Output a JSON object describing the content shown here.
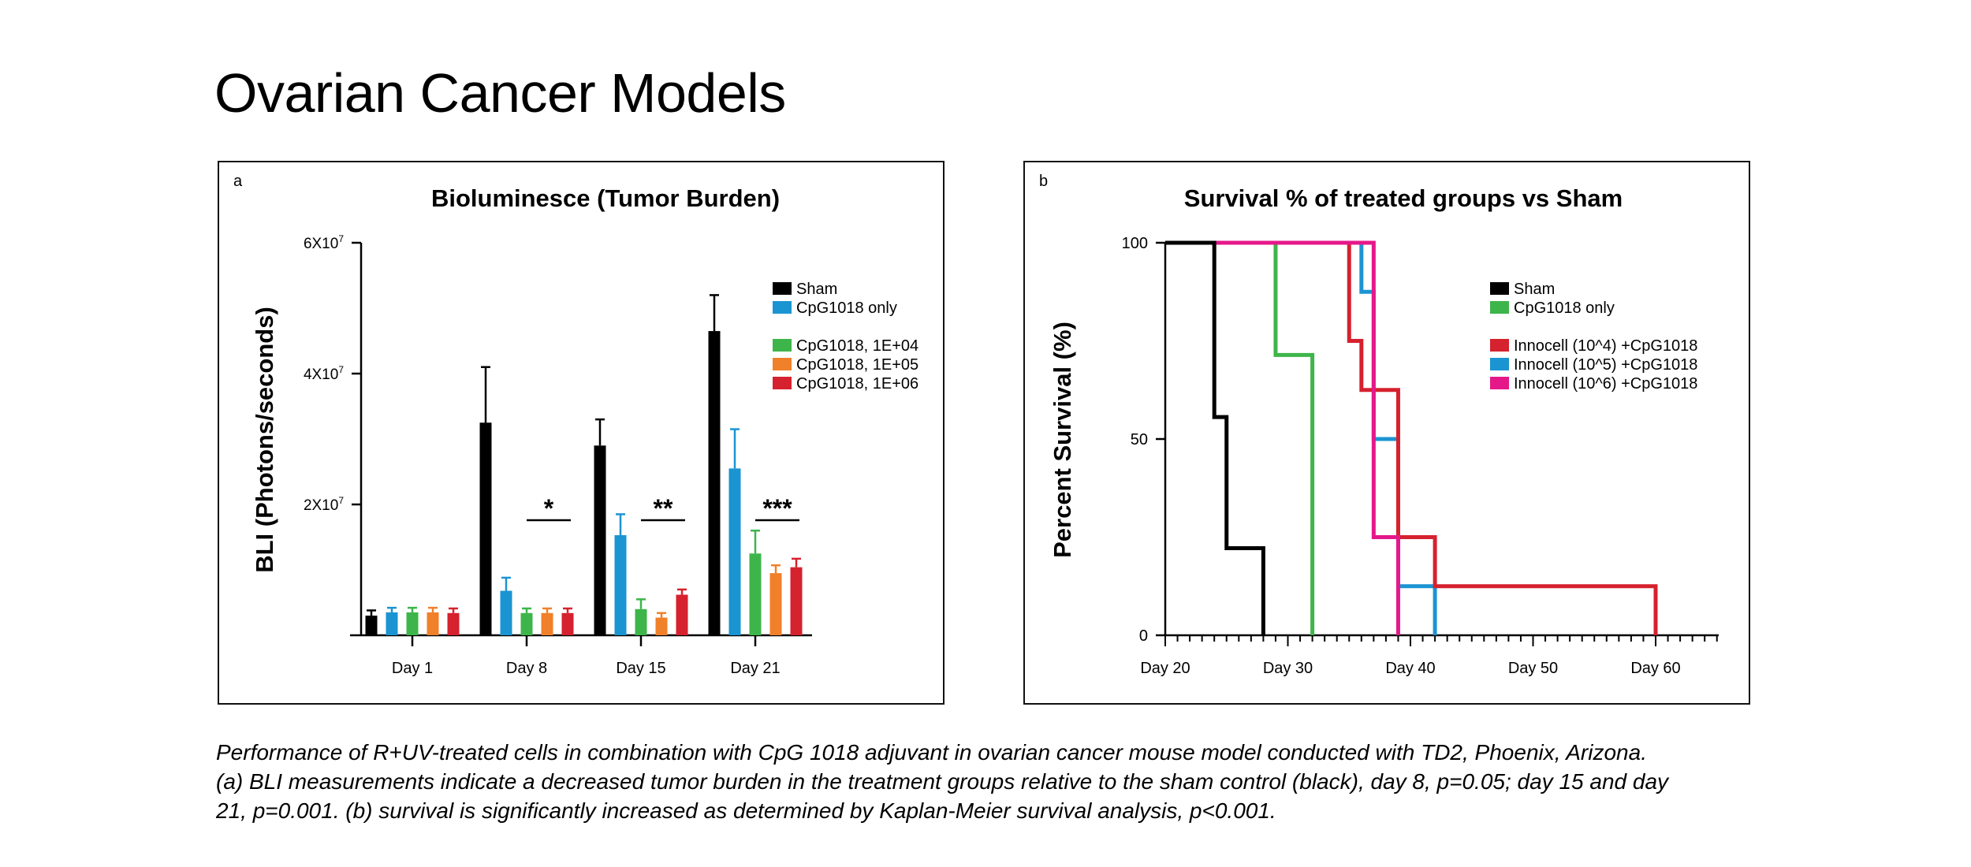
{
  "page": {
    "title": "Ovarian Cancer Models"
  },
  "caption": {
    "line1": "Performance of R+UV-treated cells in combination with CpG 1018 adjuvant in ovarian cancer mouse model conducted with TD2, Phoenix, Arizona.",
    "line2": "(a) BLI measurements indicate a decreased tumor burden in the treatment groups relative to the sham control (black), day 8, p=0.05; day 15 and day",
    "line3": "21, p=0.001. (b) survival is significantly increased as determined by Kaplan-Meier survival analysis, p<0.001."
  },
  "colors": {
    "sham": "#000000",
    "cpg": "#1b94d2",
    "green": "#3db54a",
    "orange": "#f0802a",
    "red": "#d6212e",
    "magenta": "#e5188a"
  },
  "chart_data": [
    {
      "panel_label": "a",
      "type": "bar",
      "title": "Bioluminesce (Tumor Burden)",
      "ylabel": "BLI (Photons/seconds)",
      "xlabel": "",
      "ylim": [
        0,
        60000000
      ],
      "yticks": [
        20000000,
        40000000,
        60000000
      ],
      "ytick_base": [
        "2X10",
        "4X10",
        "6X10"
      ],
      "ytick_exp": [
        "7",
        "7",
        "7"
      ],
      "categories": [
        "Day 1",
        "Day 8",
        "Day 15",
        "Day 21"
      ],
      "legend_position": "top-right",
      "series": [
        {
          "name": "Sham",
          "color": "#000000",
          "values": [
            3000000,
            32500000,
            29000000,
            46500000
          ],
          "errors": [
            800000,
            8500000,
            4000000,
            5500000
          ]
        },
        {
          "name": "CpG1018 only",
          "color": "#1b94d2",
          "values": [
            3500000,
            6800000,
            15300000,
            25500000
          ],
          "errors": [
            700000,
            2000000,
            3200000,
            6000000
          ]
        },
        {
          "name": "CpG1018, 1E+04",
          "color": "#3db54a",
          "values": [
            3500000,
            3400000,
            4000000,
            12500000
          ],
          "errors": [
            700000,
            700000,
            1500000,
            3500000
          ]
        },
        {
          "name": "CpG1018, 1E+05",
          "color": "#f0802a",
          "values": [
            3500000,
            3400000,
            2700000,
            9500000
          ],
          "errors": [
            700000,
            700000,
            700000,
            1200000
          ]
        },
        {
          "name": "CpG1018, 1E+06",
          "color": "#d6212e",
          "values": [
            3400000,
            3400000,
            6200000,
            10400000
          ],
          "errors": [
            700000,
            700000,
            800000,
            1300000
          ]
        }
      ],
      "significance": [
        {
          "category": "Day 8",
          "label": "*"
        },
        {
          "category": "Day 15",
          "label": "**"
        },
        {
          "category": "Day 21",
          "label": "***"
        }
      ]
    },
    {
      "panel_label": "b",
      "type": "line",
      "title": "Survival % of treated groups vs Sham",
      "ylabel": "Percent Survival (%)",
      "xlabel": "",
      "xlim": [
        20,
        65
      ],
      "ylim": [
        0,
        100
      ],
      "xticks": [
        20,
        30,
        40,
        50,
        60
      ],
      "xtick_labels": [
        "Day 20",
        "Day 30",
        "Day 40",
        "Day 50",
        "Day 60"
      ],
      "yticks": [
        0,
        50,
        100
      ],
      "ytick_labels": [
        "0",
        "50",
        "100"
      ],
      "legend_position": "top-right",
      "series": [
        {
          "name": "Sham",
          "color": "#000000",
          "steps": [
            [
              20,
              100
            ],
            [
              24,
              55.6
            ],
            [
              25,
              22.2
            ],
            [
              28,
              0
            ]
          ]
        },
        {
          "name": "CpG1018 only",
          "color": "#3db54a",
          "steps": [
            [
              20,
              100
            ],
            [
              29,
              71.4
            ],
            [
              32,
              0
            ]
          ]
        },
        {
          "name": "Innocell (10^4) +CpG1018",
          "color": "#d6212e",
          "steps": [
            [
              20,
              100
            ],
            [
              35,
              75
            ],
            [
              36,
              62.5
            ],
            [
              39,
              25
            ],
            [
              42,
              12.5
            ],
            [
              60,
              0
            ]
          ]
        },
        {
          "name": "Innocell (10^5) +CpG1018",
          "color": "#1b94d2",
          "steps": [
            [
              20,
              100
            ],
            [
              36,
              87.5
            ],
            [
              37,
              50
            ],
            [
              39,
              12.5
            ],
            [
              42,
              0
            ]
          ]
        },
        {
          "name": "Innocell (10^6) +CpG1018",
          "color": "#e5188a",
          "steps": [
            [
              20,
              100
            ],
            [
              37,
              25
            ],
            [
              39,
              0
            ]
          ]
        }
      ]
    }
  ]
}
